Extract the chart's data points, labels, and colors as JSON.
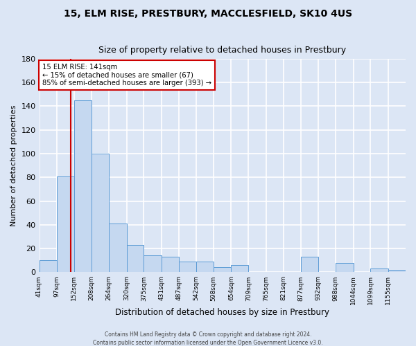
{
  "title": "15, ELM RISE, PRESTBURY, MACCLESFIELD, SK10 4US",
  "subtitle": "Size of property relative to detached houses in Prestbury",
  "xlabel": "Distribution of detached houses by size in Prestbury",
  "ylabel": "Number of detached properties",
  "bar_color": "#c5d8f0",
  "bar_edge_color": "#5b9bd5",
  "background_color": "#dce6f5",
  "fig_background_color": "#dce6f5",
  "grid_color": "#ffffff",
  "bin_labels": [
    "41sqm",
    "97sqm",
    "152sqm",
    "208sqm",
    "264sqm",
    "320sqm",
    "375sqm",
    "431sqm",
    "487sqm",
    "542sqm",
    "598sqm",
    "654sqm",
    "709sqm",
    "765sqm",
    "821sqm",
    "877sqm",
    "932sqm",
    "988sqm",
    "1044sqm",
    "1099sqm",
    "1155sqm"
  ],
  "bin_edges": [
    41,
    97,
    152,
    208,
    264,
    320,
    375,
    431,
    487,
    542,
    598,
    654,
    709,
    765,
    821,
    877,
    932,
    988,
    1044,
    1099,
    1155,
    1211
  ],
  "counts": [
    10,
    81,
    145,
    100,
    41,
    23,
    14,
    13,
    9,
    9,
    4,
    6,
    0,
    0,
    0,
    13,
    0,
    8,
    0,
    3,
    2
  ],
  "ylim": [
    0,
    180
  ],
  "yticks": [
    0,
    20,
    40,
    60,
    80,
    100,
    120,
    140,
    160,
    180
  ],
  "property_value": 141,
  "vline_color": "#cc0000",
  "annotation_box_facecolor": "#ffffff",
  "annotation_box_edgecolor": "#cc0000",
  "annotation_title": "15 ELM RISE: 141sqm",
  "annotation_line1": "← 15% of detached houses are smaller (67)",
  "annotation_line2": "85% of semi-detached houses are larger (393) →",
  "footer_line1": "Contains HM Land Registry data © Crown copyright and database right 2024.",
  "footer_line2": "Contains public sector information licensed under the Open Government Licence v3.0."
}
